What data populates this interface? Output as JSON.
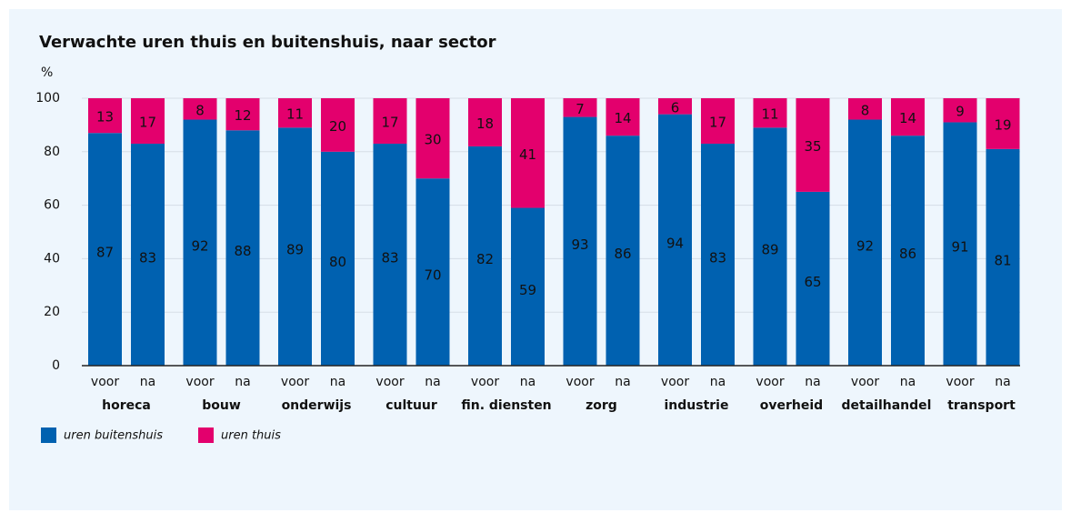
{
  "chart_data": {
    "type": "stacked_bar",
    "title": "Verwachte uren thuis en buitenshuis, naar sector",
    "y_label": "%",
    "categories": [
      "voor",
      "na",
      "voor",
      "na",
      "voor",
      "na",
      "voor",
      "na",
      "voor",
      "na",
      "voor",
      "na",
      "voor",
      "na",
      "voor",
      "na",
      "voor",
      "na",
      "voor",
      "na"
    ],
    "groups": [
      "horeca",
      "bouw",
      "onderwijs",
      "cultuur",
      "fin. diensten",
      "zorg",
      "industrie",
      "overheid",
      "detailhandel",
      "transport"
    ],
    "series": [
      {
        "name": "uren buitenshuis",
        "color": "#0061b0",
        "values": [
          87,
          83,
          92,
          88,
          89,
          80,
          83,
          70,
          82,
          59,
          93,
          86,
          94,
          83,
          89,
          65,
          92,
          86,
          91,
          81
        ]
      },
      {
        "name": "uren thuis",
        "color": "#e3006d",
        "values": [
          13,
          17,
          8,
          12,
          11,
          20,
          17,
          30,
          18,
          41,
          7,
          14,
          6,
          17,
          11,
          35,
          8,
          14,
          9,
          19
        ]
      }
    ],
    "ylim": [
      0,
      100
    ],
    "yticks": [
      0,
      20,
      40,
      60,
      80,
      100
    ],
    "grid": true,
    "legend": "bottom-left"
  }
}
